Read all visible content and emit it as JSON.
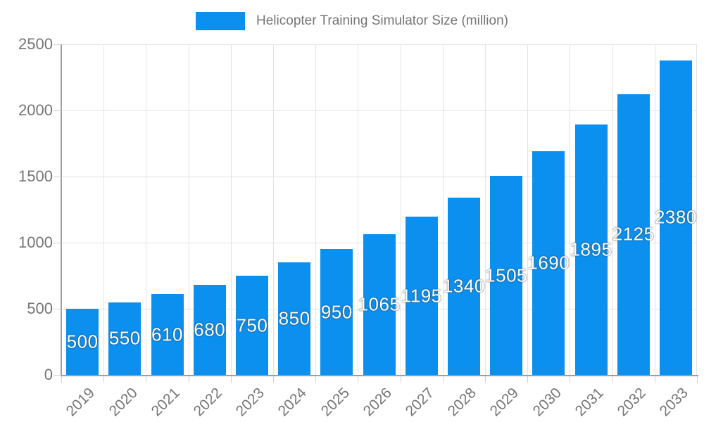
{
  "legend": {
    "label": "Helicopter Training Simulator Size (million)"
  },
  "chart_data": {
    "type": "bar",
    "title": "Helicopter Training Simulator Size (million)",
    "categories": [
      "2019",
      "2020",
      "2021",
      "2022",
      "2023",
      "2024",
      "2025",
      "2026",
      "2027",
      "2028",
      "2029",
      "2030",
      "2031",
      "2032",
      "2033"
    ],
    "values": [
      500,
      550,
      610,
      680,
      750,
      850,
      950,
      1065,
      1195,
      1340,
      1505,
      1690,
      1895,
      2125,
      2380
    ],
    "xlabel": "",
    "ylabel": "",
    "ylim": [
      0,
      2500
    ],
    "yticks": [
      0,
      500,
      1000,
      1500,
      2000,
      2500
    ],
    "grid": true,
    "legend_position": "top",
    "colors": {
      "bar": "#0b90f0",
      "bar_label": "#ffffff",
      "axis_text": "#757575",
      "axis_line": "#9e9e9e",
      "gridline": "#e3e3e3",
      "tick": "#cfcfcf"
    }
  }
}
